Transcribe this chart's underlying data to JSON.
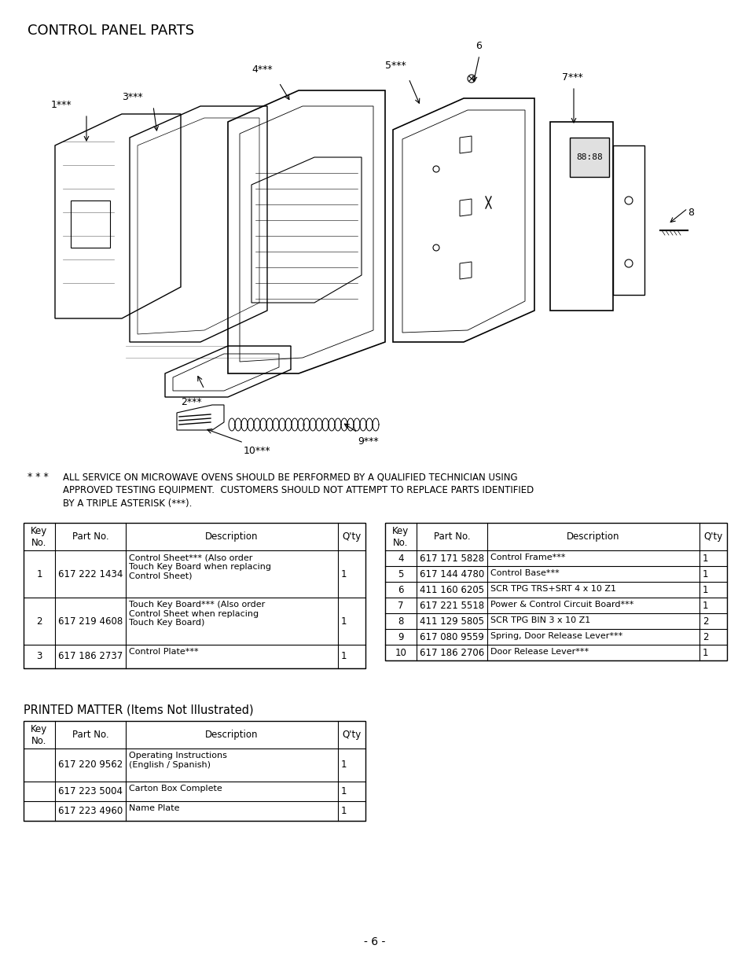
{
  "title": "CONTROL PANEL PARTS",
  "bg_color": "#ffffff",
  "disclaimer": "* * *   ALL SERVICE ON MICROWAVE OVENS SHOULD BE PERFORMED BY A QUALIFIED TECHNICIAN USING\n          APPROVED TESTING EQUIPMENT.  CUSTOMERS SHOULD NOT ATTEMPT TO REPLACE PARTS IDENTIFIED\n          BY A TRIPLE ASTERISK (***).",
  "table1_headers": [
    "Key\nNo.",
    "Part No.",
    "Description",
    "Q'ty"
  ],
  "table1_rows": [
    [
      "1",
      "617 222 1434",
      "Control Sheet*** (Also order\nTouch Key Board when replacing\nControl Sheet)",
      "1"
    ],
    [
      "2",
      "617 219 4608",
      "Touch Key Board*** (Also order\nControl Sheet when replacing\nTouch Key Board)",
      "1"
    ],
    [
      "3",
      "617 186 2737",
      "Control Plate***",
      "1"
    ]
  ],
  "table2_headers": [
    "Key\nNo.",
    "Part No.",
    "Description",
    "Q'ty"
  ],
  "table2_rows": [
    [
      "4",
      "617 171 5828",
      "Control Frame***",
      "1"
    ],
    [
      "5",
      "617 144 4780",
      "Control Base***",
      "1"
    ],
    [
      "6",
      "411 160 6205",
      "SCR TPG TRS+SRT 4 x 10 Z1",
      "1"
    ],
    [
      "7",
      "617 221 5518",
      "Power & Control Circuit Board***",
      "1"
    ],
    [
      "8",
      "411 129 5805",
      "SCR TPG BIN 3 x 10 Z1",
      "2"
    ],
    [
      "9",
      "617 080 9559",
      "Spring, Door Release Lever***",
      "2"
    ],
    [
      "10",
      "617 186 2706",
      "Door Release Lever***",
      "1"
    ]
  ],
  "table3_title": "PRINTED MATTER (Items Not Illustrated)",
  "table3_headers": [
    "Key\nNo.",
    "Part No.",
    "Description",
    "Q'ty"
  ],
  "table3_rows": [
    [
      "",
      "617 220 9562",
      "Operating Instructions\n(English / Spanish)",
      "1"
    ],
    [
      "",
      "617 223 5004",
      "Carton Box Complete",
      "1"
    ],
    [
      "",
      "617 223 4960",
      "Name Plate",
      "1"
    ]
  ],
  "page_number": "- 6 -"
}
